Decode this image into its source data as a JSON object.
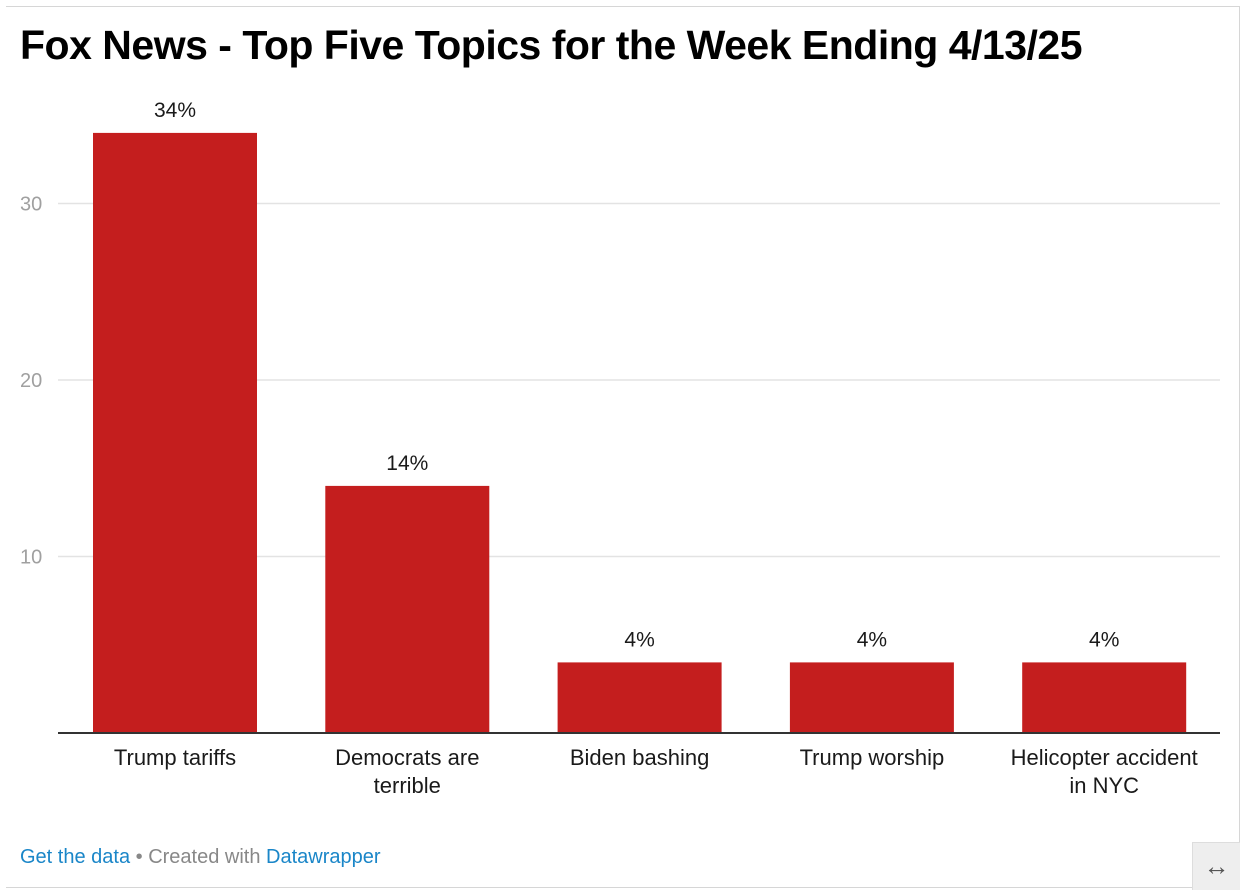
{
  "title": "Fox News - Top Five Topics for the Week Ending 4/13/25",
  "footer": {
    "get_data_label": "Get the data",
    "separator": " • ",
    "created_with_label": "Created with ",
    "tool_label": "Datawrapper"
  },
  "resize_icon": "↔",
  "colors": {
    "bar": "#c41e1e",
    "gridline": "#e3e3e3",
    "axis_tick_text": "#a0a0a0",
    "baseline": "#333333",
    "link": "#1a86c8"
  },
  "chart_data": {
    "type": "bar",
    "title": "Fox News - Top Five Topics for the Week Ending 4/13/25",
    "categories": [
      [
        "Trump tariffs"
      ],
      [
        "Democrats are",
        "terrible"
      ],
      [
        "Biden bashing"
      ],
      [
        "Trump worship"
      ],
      [
        "Helicopter accident",
        "in NYC"
      ]
    ],
    "values": [
      34,
      14,
      4,
      4,
      4
    ],
    "value_labels": [
      "34%",
      "14%",
      "4%",
      "4%",
      "4%"
    ],
    "yticks": [
      10,
      20,
      30
    ],
    "ylim": [
      0,
      34
    ],
    "grid": true,
    "xlabel": "",
    "ylabel": ""
  }
}
